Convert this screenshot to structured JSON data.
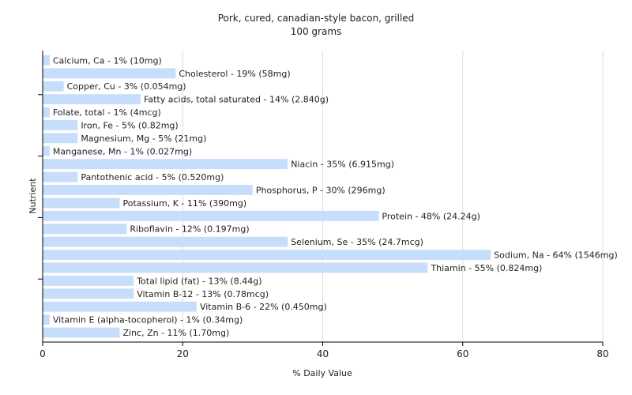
{
  "chart_data": {
    "type": "bar",
    "orientation": "horizontal",
    "title": "Pork, cured, canadian-style bacon, grilled",
    "subtitle": "100 grams",
    "xlabel": "% Daily Value",
    "ylabel": "Nutrient",
    "xlim": [
      0,
      80
    ],
    "xticks": [
      0,
      20,
      40,
      60,
      80
    ],
    "grid": true,
    "bar_color": "#c6ddfb",
    "categories": [
      "Calcium, Ca",
      "Cholesterol",
      "Copper, Cu",
      "Fatty acids, total saturated",
      "Folate, total",
      "Iron, Fe",
      "Magnesium, Mg",
      "Manganese, Mn",
      "Niacin",
      "Pantothenic acid",
      "Phosphorus, P",
      "Potassium, K",
      "Protein",
      "Riboflavin",
      "Selenium, Se",
      "Sodium, Na",
      "Thiamin",
      "Total lipid (fat)",
      "Vitamin B-12",
      "Vitamin B-6",
      "Vitamin E (alpha-tocopherol)",
      "Zinc, Zn"
    ],
    "values": [
      1,
      19,
      3,
      14,
      1,
      5,
      5,
      1,
      35,
      5,
      30,
      11,
      48,
      12,
      35,
      64,
      55,
      13,
      13,
      22,
      1,
      11
    ],
    "labels": [
      "Calcium, Ca - 1% (10mg)",
      "Cholesterol - 19% (58mg)",
      "Copper, Cu - 3% (0.054mg)",
      "Fatty acids, total saturated - 14% (2.840g)",
      "Folate, total - 1% (4mcg)",
      "Iron, Fe - 5% (0.82mg)",
      "Magnesium, Mg - 5% (21mg)",
      "Manganese, Mn - 1% (0.027mg)",
      "Niacin - 35% (6.915mg)",
      "Pantothenic acid - 5% (0.520mg)",
      "Phosphorus, P - 30% (296mg)",
      "Potassium, K - 11% (390mg)",
      "Protein - 48% (24.24g)",
      "Riboflavin - 12% (0.197mg)",
      "Selenium, Se - 35% (24.7mcg)",
      "Sodium, Na - 64% (1546mg)",
      "Thiamin - 55% (0.824mg)",
      "Total lipid (fat) - 13% (8.44g)",
      "Vitamin B-12 - 13% (0.78mcg)",
      "Vitamin B-6 - 22% (0.450mg)",
      "Vitamin E (alpha-tocopherol) - 1% (0.34mg)",
      "Zinc, Zn - 11% (1.70mg)"
    ]
  }
}
